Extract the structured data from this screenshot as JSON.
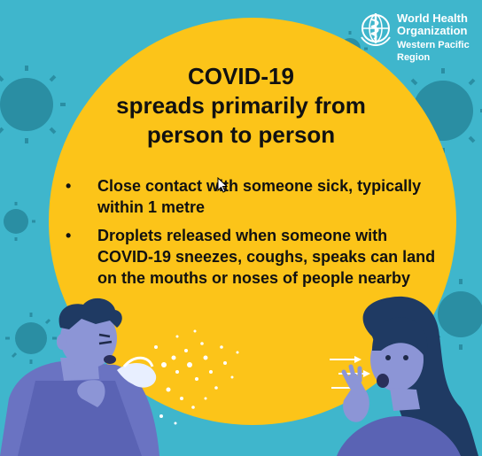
{
  "logo": {
    "name_line1": "World Health",
    "name_line2": "Organization",
    "region": "Western Pacific Region",
    "emblem_icon": "who-emblem-icon"
  },
  "headline": {
    "line1": "COVID-19",
    "line2": "spreads primarily from",
    "line3": "person to person"
  },
  "bullets": [
    {
      "marker": "•",
      "text": "Close contact with someone sick, typically within 1 metre"
    },
    {
      "marker": "•",
      "text": "Droplets released when someone with COVID-19 sneezes, coughs, speaks can land on the mouths or noses of people nearby"
    }
  ],
  "colors": {
    "background": "#3fb6cc",
    "sun": "#fcc419",
    "virus": "#2a8ea3",
    "skin": "#8c95d6",
    "text": "#111111"
  },
  "illustrations": {
    "left": "sneezing-man-illustration",
    "right": "startled-woman-illustration",
    "cursor": "mouse-cursor-icon"
  }
}
